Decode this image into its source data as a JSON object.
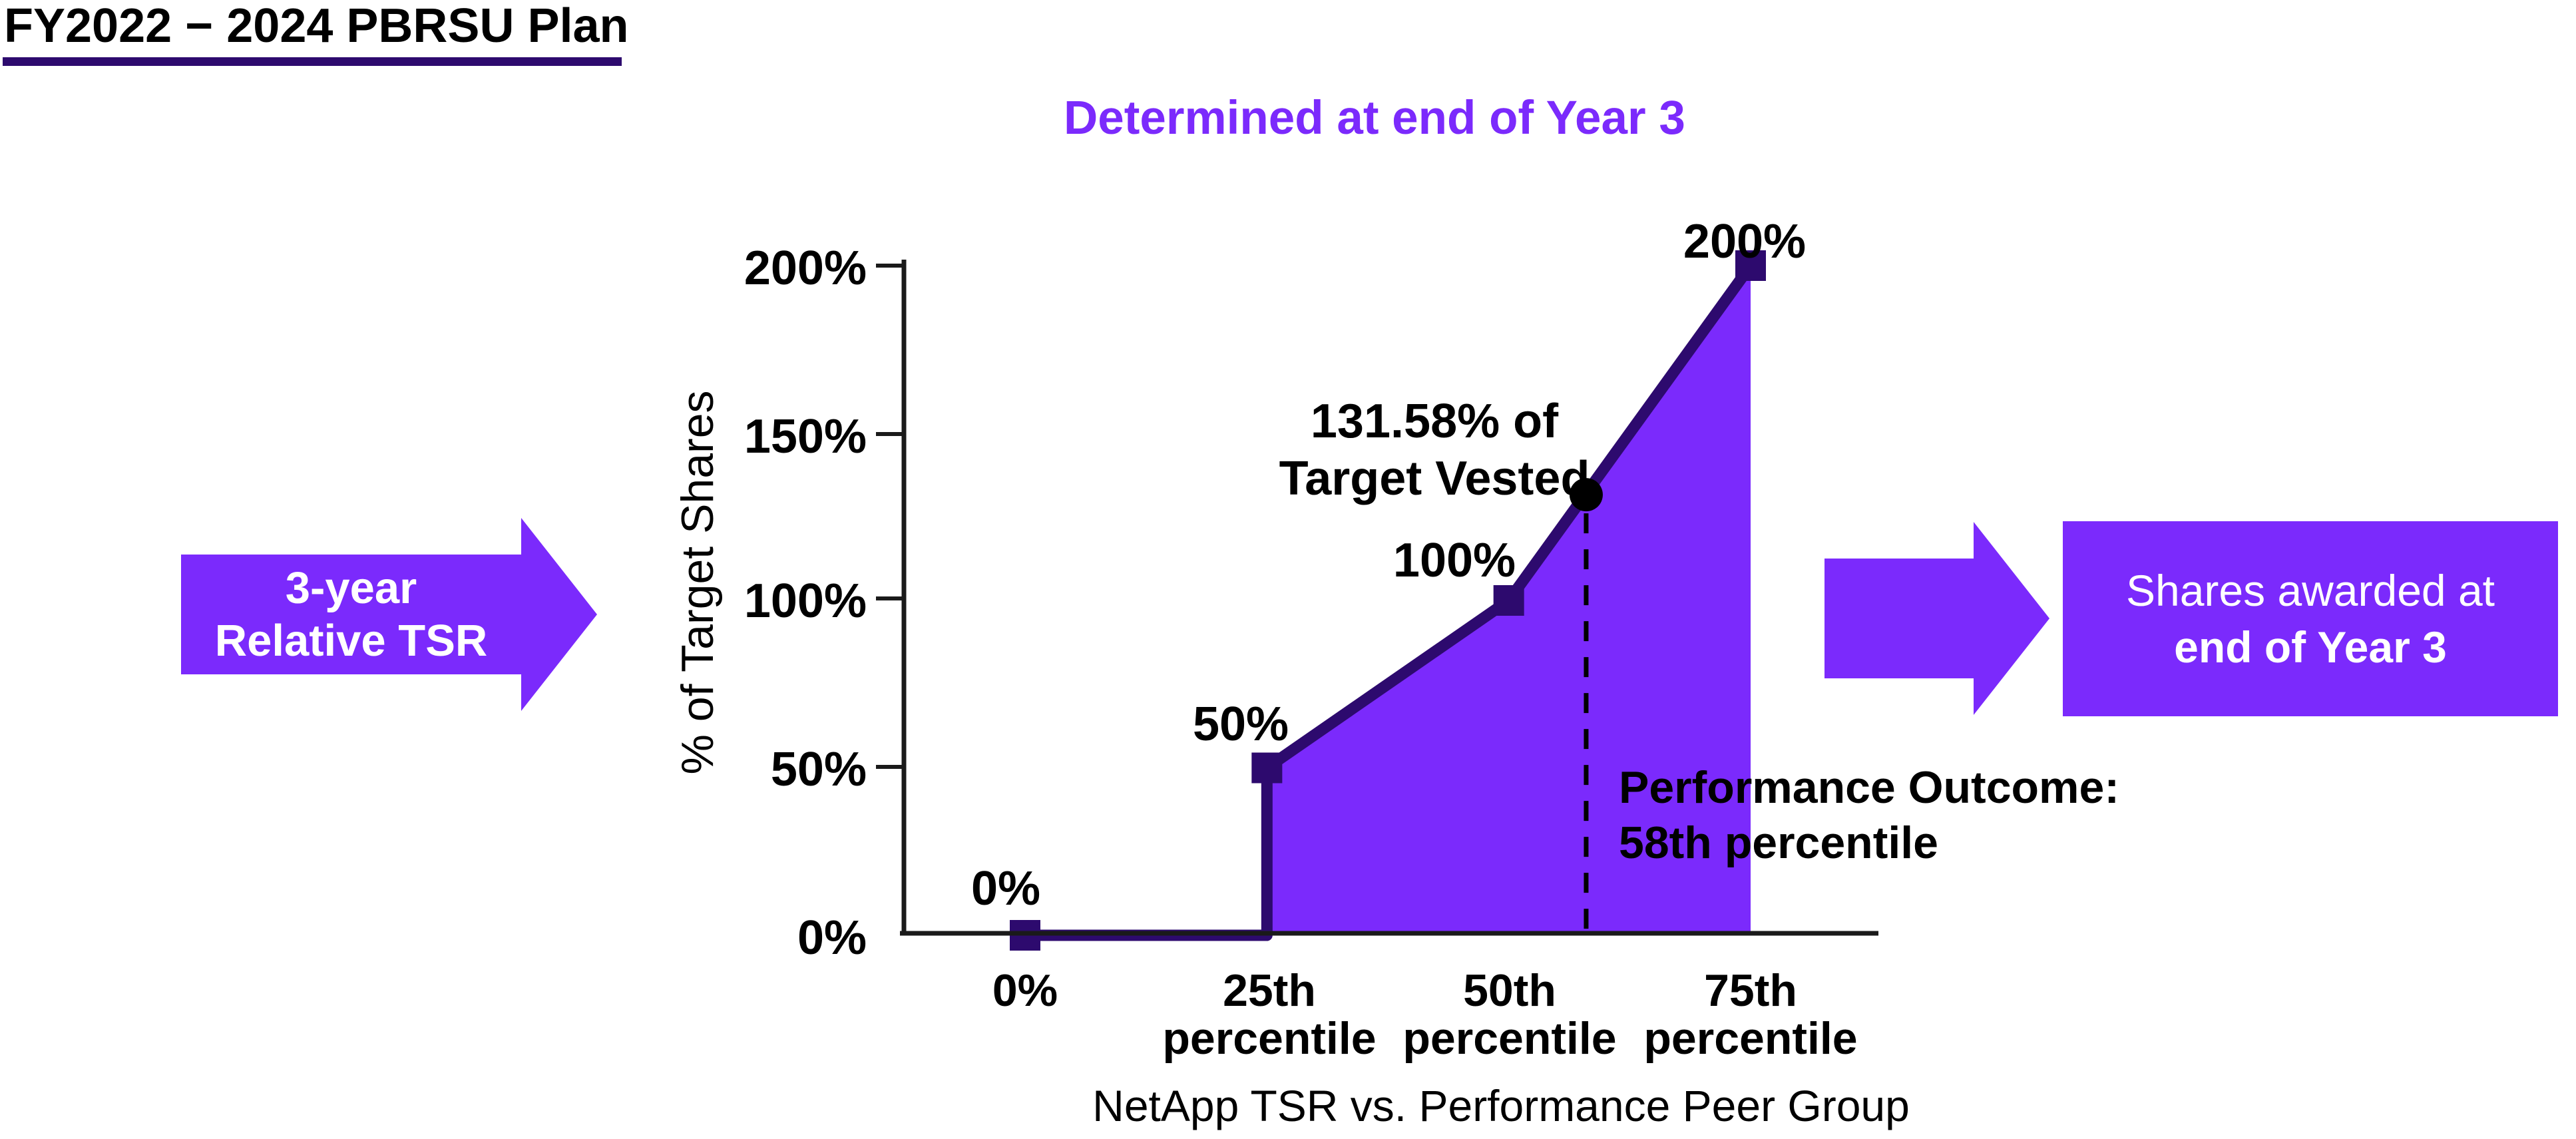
{
  "page": {
    "title": "FY2022 − 2024 PBRSU Plan",
    "subtitle": "Determined at end of Year 3"
  },
  "colors": {
    "purple": "#7B2AFC",
    "dark_indigo": "#2D0A6E",
    "axis_black": "#1a1a1a",
    "text_black": "#000000"
  },
  "left_arrow": {
    "line1": "3-year",
    "line2": "Relative TSR"
  },
  "right_box": {
    "line1": "Shares awarded at",
    "line2": "end of Year 3"
  },
  "chart": {
    "y_axis_title": "% of Target Shares",
    "x_axis_title": "NetApp TSR vs. Performance Peer Group",
    "y_tick_labels": [
      "200%",
      "150%",
      "100%",
      "50%",
      "0%"
    ],
    "x_tick_labels": [
      {
        "line1": "0%",
        "line2": ""
      },
      {
        "line1": "25th",
        "line2": "percentile"
      },
      {
        "line1": "50th",
        "line2": "percentile"
      },
      {
        "line1": "75th",
        "line2": "percentile"
      }
    ],
    "point_labels": {
      "p0": "0%",
      "p25": "50%",
      "p50": "100%",
      "p75": "200%"
    },
    "highlight_label": {
      "line1": "131.58% of",
      "line2": "Target Vested"
    },
    "outcome_note": {
      "line1": "Performance Outcome:",
      "line2": "58th percentile"
    }
  },
  "chart_data": {
    "type": "line",
    "title": "Determined at end of Year 3",
    "xlabel": "NetApp TSR vs. Performance Peer Group",
    "ylabel": "% of Target Shares",
    "x_tick_labels": [
      "0%",
      "25th percentile",
      "50th percentile",
      "75th percentile"
    ],
    "y_tick_labels": [
      "0%",
      "50%",
      "100%",
      "150%",
      "200%"
    ],
    "xlim": [
      0,
      75
    ],
    "ylim": [
      0,
      200
    ],
    "x": [
      0,
      25,
      25,
      50,
      75
    ],
    "y": [
      0,
      0,
      50,
      100,
      200
    ],
    "markers": [
      {
        "x": 0,
        "y": 0,
        "label": "0%"
      },
      {
        "x": 25,
        "y": 50,
        "label": "50%"
      },
      {
        "x": 50,
        "y": 100,
        "label": "100%"
      },
      {
        "x": 75,
        "y": 200,
        "label": "200%"
      }
    ],
    "highlight_point": {
      "x": 58,
      "y": 131.58,
      "label": "131.58% of Target Vested"
    },
    "annotation": "Performance Outcome: 58th percentile",
    "area": {
      "from_x": 25,
      "to_x": 75,
      "filled": true
    },
    "legend": false,
    "grid": false
  }
}
